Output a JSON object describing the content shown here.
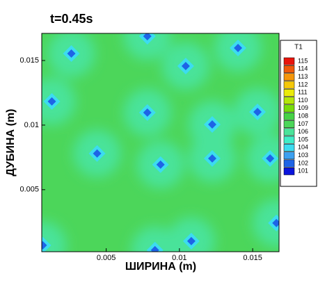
{
  "chart_data": {
    "type": "contour",
    "title": "t=0.45s",
    "x_label": "ШИРИНА (m)",
    "y_label": "ДУБИНА (m)",
    "xlim": [
      0.0006,
      0.0168
    ],
    "ylim": [
      0.0002,
      0.0171
    ],
    "xticks": [
      0.005,
      0.01,
      0.015
    ],
    "yticks": [
      0.005,
      0.01,
      0.015
    ],
    "x": [
      0.00262,
      0.00781,
      0.01043,
      0.014,
      0.00129,
      0.00781,
      0.01224,
      0.01533,
      0.00438,
      0.00871,
      0.01224,
      0.01619,
      0.01662,
      0.01081,
      0.00067,
      0.00833
    ],
    "y": [
      0.01554,
      0.01688,
      0.01457,
      0.01597,
      0.01183,
      0.01097,
      0.01005,
      0.01102,
      0.0078,
      0.00694,
      0.00742,
      0.00742,
      0.00242,
      0.00102,
      0.0007,
      0.00032
    ],
    "values": [
      102,
      102,
      102,
      102,
      102,
      102,
      102,
      102,
      102,
      102,
      102,
      102,
      102,
      102,
      102,
      102
    ],
    "background_level": 107,
    "colorbar": {
      "title": "T1",
      "levels": [
        115,
        114,
        113,
        112,
        111,
        110,
        109,
        108,
        107,
        106,
        105,
        104,
        103,
        102,
        101
      ],
      "colors": [
        "#e8140c",
        "#f05a0a",
        "#f5960a",
        "#f5c80a",
        "#ebeb0a",
        "#b4e60a",
        "#78dc0a",
        "#46d246",
        "#4cd65a",
        "#4ae39a",
        "#40eec8",
        "#3cdcf0",
        "#3ca0f0",
        "#1e64e6",
        "#0a14dc"
      ]
    }
  }
}
